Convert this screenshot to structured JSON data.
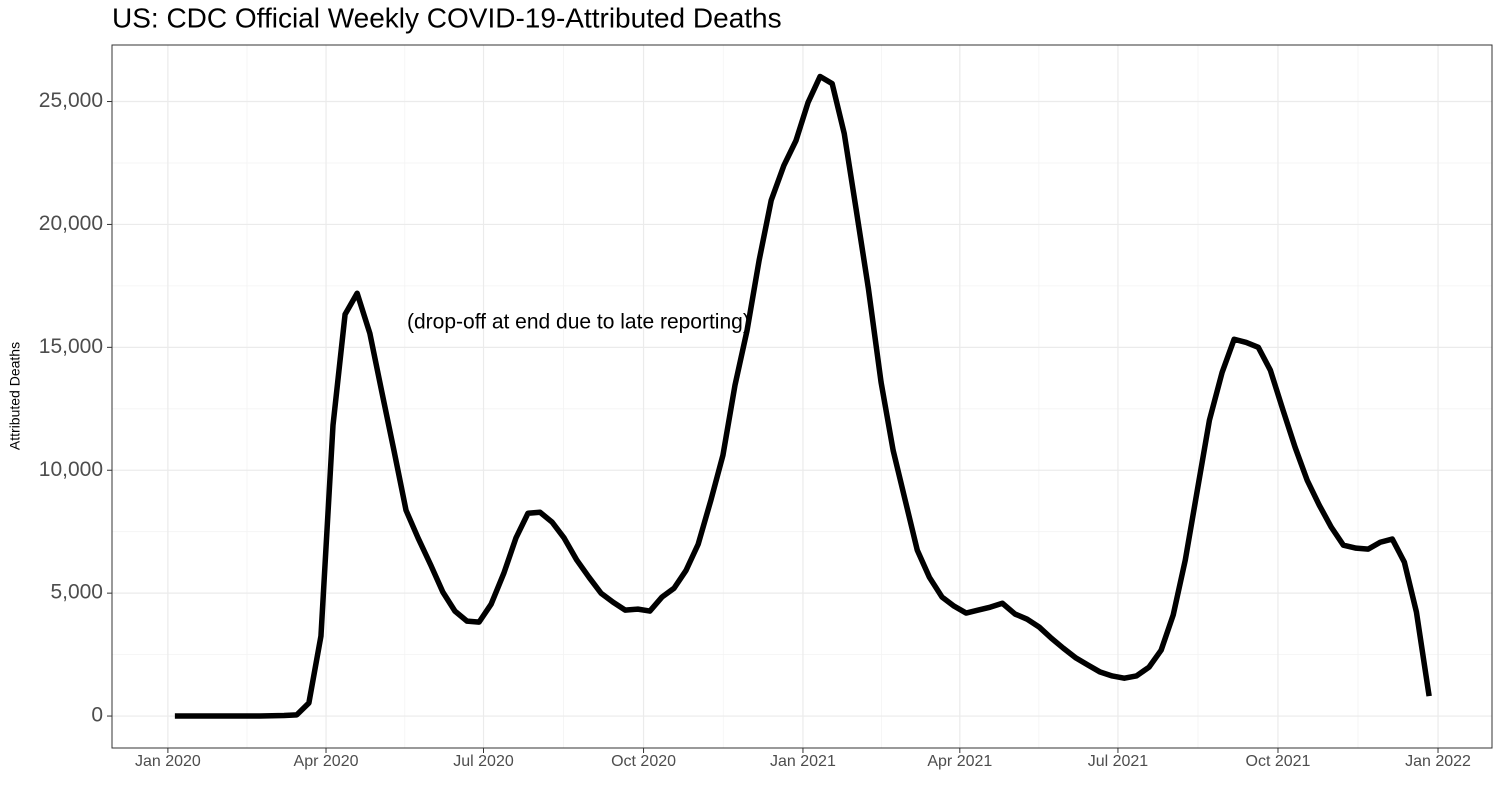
{
  "chart_data": {
    "type": "line",
    "title": "US: CDC Official Weekly COVID-19-Attributed Deaths",
    "y_label": "Attributed Deaths",
    "annotation": "(drop-off at end due to late reporting)",
    "x": [
      2020.011,
      2020.03,
      2020.049,
      2020.068,
      2020.087,
      2020.107,
      2020.126,
      2020.145,
      2020.164,
      2020.183,
      2020.203,
      2020.222,
      2020.241,
      2020.26,
      2020.279,
      2020.298,
      2020.318,
      2020.337,
      2020.356,
      2020.375,
      2020.394,
      2020.414,
      2020.433,
      2020.452,
      2020.471,
      2020.49,
      2020.509,
      2020.529,
      2020.548,
      2020.567,
      2020.586,
      2020.605,
      2020.624,
      2020.644,
      2020.663,
      2020.682,
      2020.701,
      2020.72,
      2020.74,
      2020.759,
      2020.778,
      2020.797,
      2020.816,
      2020.835,
      2020.855,
      2020.874,
      2020.893,
      2020.912,
      2020.931,
      2020.95,
      2020.97,
      2020.989,
      2021.008,
      2021.027,
      2021.046,
      2021.065,
      2021.084,
      2021.103,
      2021.123,
      2021.142,
      2021.161,
      2021.18,
      2021.199,
      2021.219,
      2021.238,
      2021.257,
      2021.276,
      2021.295,
      2021.314,
      2021.334,
      2021.353,
      2021.372,
      2021.391,
      2021.41,
      2021.43,
      2021.449,
      2021.468,
      2021.487,
      2021.506,
      2021.525,
      2021.545,
      2021.564,
      2021.583,
      2021.602,
      2021.621,
      2021.64,
      2021.66,
      2021.679,
      2021.698,
      2021.717,
      2021.736,
      2021.756,
      2021.775,
      2021.794,
      2021.813,
      2021.832,
      2021.851,
      2021.871,
      2021.89,
      2021.909,
      2021.928,
      2021.947,
      2021.966,
      2021.986
    ],
    "series": [
      {
        "name": "Attributed Deaths",
        "color": "#000000",
        "values": [
          0,
          0,
          0,
          0,
          0,
          0,
          0,
          0,
          10,
          20,
          50,
          530,
          3250,
          11830,
          16340,
          17200,
          15570,
          13170,
          10800,
          8370,
          7240,
          6140,
          5040,
          4270,
          3860,
          3820,
          4550,
          5810,
          7240,
          8250,
          8290,
          7890,
          7240,
          6340,
          5650,
          5000,
          4630,
          4310,
          4350,
          4270,
          4840,
          5200,
          5930,
          6990,
          8780,
          10610,
          13460,
          15690,
          18540,
          20980,
          22400,
          23410,
          24960,
          26020,
          25730,
          23700,
          20570,
          17400,
          13580,
          10810,
          8780,
          6750,
          5650,
          4840,
          4470,
          4190,
          4310,
          4430,
          4590,
          4150,
          3940,
          3620,
          3170,
          2760,
          2360,
          2070,
          1790,
          1630,
          1540,
          1630,
          1990,
          2680,
          4110,
          6340,
          9190,
          12030,
          13980,
          15330,
          15200,
          15000,
          14070,
          12440,
          10930,
          9590,
          8580,
          7680,
          6950,
          6830,
          6790,
          7070,
          7200,
          6260,
          4230,
          810
        ]
      }
    ],
    "xlim": [
      2019.912,
      2022.085
    ],
    "xticks": [
      {
        "value": 2020,
        "label": "Jan 2020"
      },
      {
        "value": 2020.249,
        "label": "Apr 2020"
      },
      {
        "value": 2020.497,
        "label": "Jul 2020"
      },
      {
        "value": 2020.749,
        "label": "Oct 2020"
      },
      {
        "value": 2021,
        "label": "Jan 2021"
      },
      {
        "value": 2021.247,
        "label": "Apr 2021"
      },
      {
        "value": 2021.496,
        "label": "Jul 2021"
      },
      {
        "value": 2021.748,
        "label": "Oct 2021"
      },
      {
        "value": 2022,
        "label": "Jan 2022"
      }
    ],
    "ylim": [
      -1300,
      27300
    ],
    "yticks": [
      0,
      {
        "value": 5000,
        "label": "5,000"
      },
      {
        "value": 10000,
        "label": "10,000"
      },
      {
        "value": 15000,
        "label": "15,000"
      },
      {
        "value": 20000,
        "label": "20,000"
      },
      {
        "value": 25000,
        "label": "25,000"
      }
    ],
    "grid": true
  }
}
